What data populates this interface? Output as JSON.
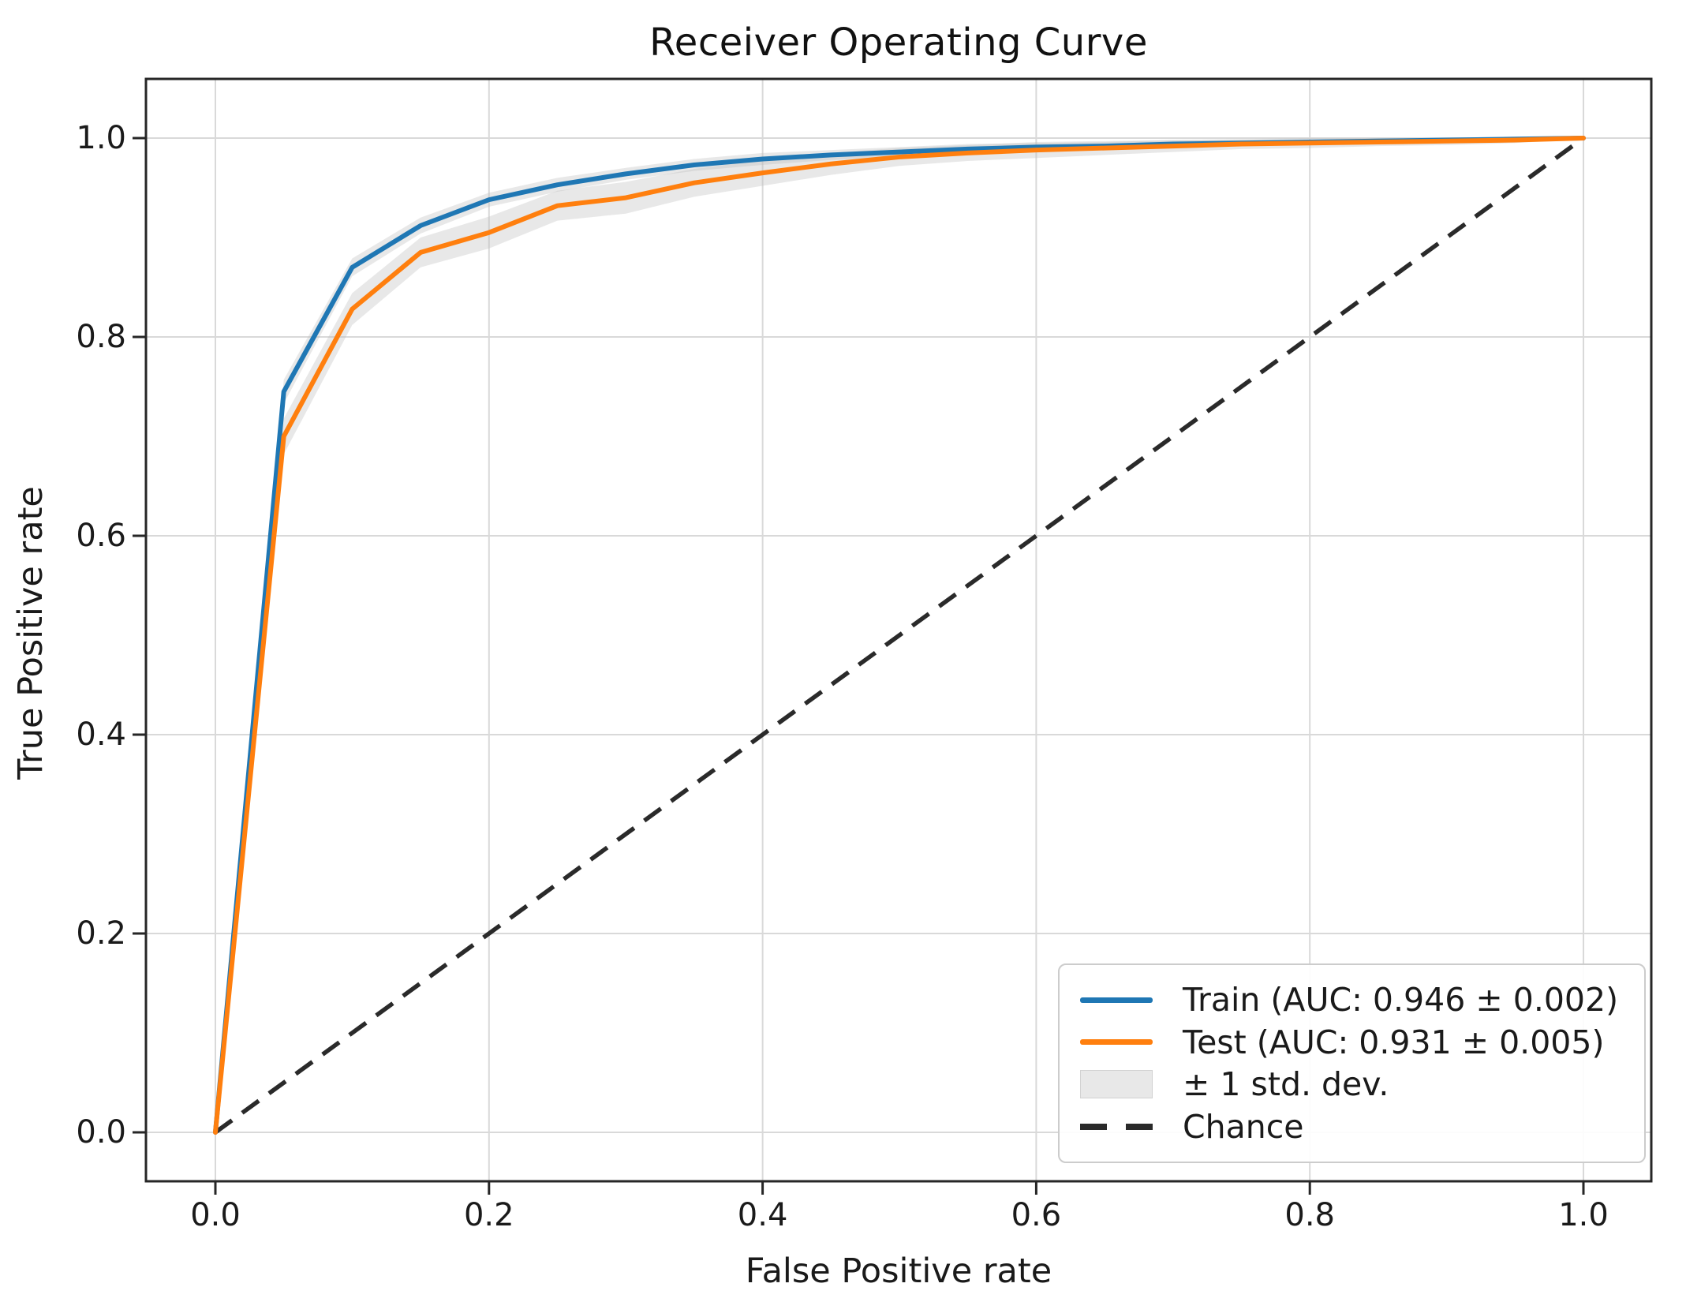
{
  "figure": {
    "background": "#ffffff",
    "text_color": "#1a1a1a",
    "spine_color": "#262626"
  },
  "chart_data": {
    "type": "line",
    "title": "Receiver Operating Curve",
    "xlabel": "False Positive rate",
    "ylabel": "True Positive rate",
    "xlim": [
      -0.05,
      1.05
    ],
    "ylim": [
      -0.05,
      1.05
    ],
    "xticks": [
      0.0,
      0.2,
      0.4,
      0.6,
      0.8,
      1.0
    ],
    "yticks": [
      0.0,
      0.2,
      0.4,
      0.6,
      0.8,
      1.0
    ],
    "grid": true,
    "grid_color": "#d9d9d9",
    "legend_position": "lower right",
    "x": [
      0.0,
      0.05,
      0.1,
      0.15,
      0.2,
      0.25,
      0.3,
      0.35,
      0.4,
      0.45,
      0.5,
      0.55,
      0.6,
      0.65,
      0.7,
      0.75,
      0.8,
      0.85,
      0.9,
      0.95,
      1.0
    ],
    "series": [
      {
        "name": "Train",
        "label": "Train (AUC: 0.946 ± 0.002)",
        "auc": 0.946,
        "auc_std": 0.002,
        "color": "#1f77b4",
        "values": [
          0.0,
          0.745,
          0.87,
          0.912,
          0.938,
          0.953,
          0.964,
          0.973,
          0.979,
          0.983,
          0.986,
          0.989,
          0.991,
          0.992,
          0.994,
          0.995,
          0.996,
          0.997,
          0.998,
          0.999,
          1.0
        ],
        "std": [
          0.003,
          0.012,
          0.009,
          0.008,
          0.007,
          0.007,
          0.006,
          0.006,
          0.006,
          0.005,
          0.005,
          0.005,
          0.004,
          0.004,
          0.004,
          0.003,
          0.003,
          0.003,
          0.002,
          0.002,
          0.001
        ]
      },
      {
        "name": "Test",
        "label": "Test (AUC: 0.931 ± 0.005)",
        "auc": 0.931,
        "auc_std": 0.005,
        "color": "#ff7f0e",
        "values": [
          0.0,
          0.7,
          0.828,
          0.885,
          0.905,
          0.932,
          0.94,
          0.955,
          0.965,
          0.974,
          0.981,
          0.985,
          0.988,
          0.99,
          0.992,
          0.994,
          0.995,
          0.996,
          0.997,
          0.998,
          1.0
        ],
        "std": [
          0.004,
          0.018,
          0.016,
          0.015,
          0.016,
          0.015,
          0.016,
          0.014,
          0.013,
          0.011,
          0.009,
          0.008,
          0.008,
          0.007,
          0.006,
          0.005,
          0.005,
          0.004,
          0.004,
          0.003,
          0.001
        ]
      }
    ],
    "band": {
      "label": "± 1 std. dev.",
      "color": "#bdbdbd",
      "opacity": 0.35
    },
    "chance": {
      "label": "Chance",
      "color": "#2a2a2a",
      "dash": [
        26,
        16
      ],
      "points": [
        [
          0,
          0
        ],
        [
          1,
          1
        ]
      ]
    }
  }
}
